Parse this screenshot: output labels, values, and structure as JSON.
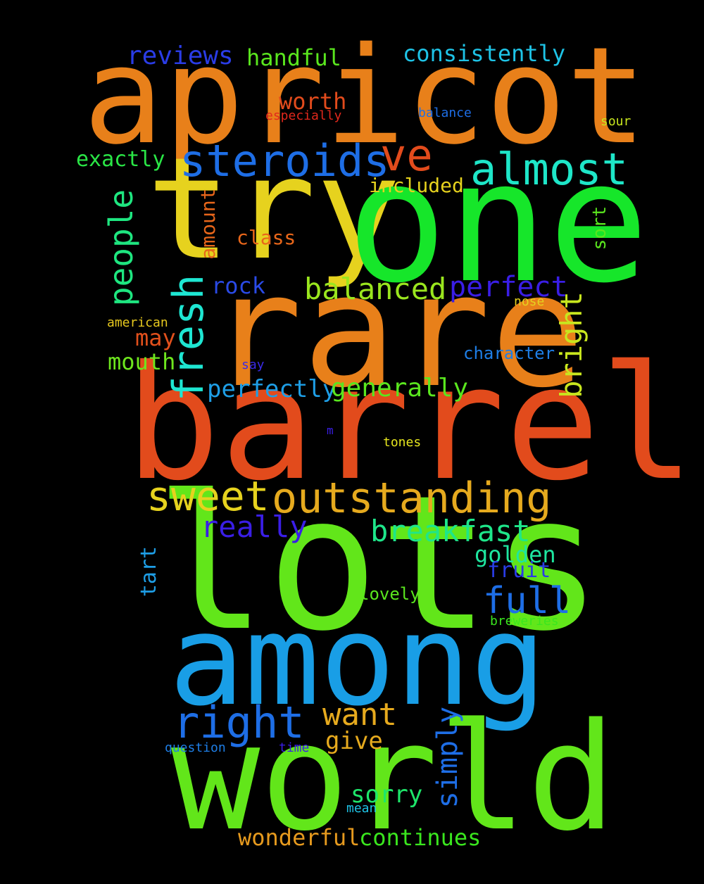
{
  "words": {
    "apricot": {
      "text": "apricot",
      "color": "#e8801a"
    },
    "try": {
      "text": "try",
      "color": "#e6d21e"
    },
    "one": {
      "text": "one",
      "color": "#16e62a"
    },
    "rare": {
      "text": "rare",
      "color": "#e8801a"
    },
    "barrel": {
      "text": "barrel",
      "color": "#e24b1c"
    },
    "lots": {
      "text": "lots",
      "color": "#62e61a"
    },
    "among": {
      "text": "among",
      "color": "#199ee6"
    },
    "world": {
      "text": "world",
      "color": "#62e61a"
    },
    "steroids": {
      "text": "steroids",
      "color": "#1e6ee6"
    },
    "ve": {
      "text": "ve",
      "color": "#e24b1c"
    },
    "almost": {
      "text": "almost",
      "color": "#1ee6c8"
    },
    "reviews": {
      "text": "reviews",
      "color": "#2a3ce6"
    },
    "handful": {
      "text": "handful",
      "color": "#5ae61e"
    },
    "consistently": {
      "text": "consistently",
      "color": "#1ec3e6"
    },
    "worth": {
      "text": "worth",
      "color": "#e24b1c"
    },
    "especially": {
      "text": "especially",
      "color": "#e2281c"
    },
    "balance": {
      "text": "balance",
      "color": "#1e6ee6"
    },
    "sour": {
      "text": "sour",
      "color": "#c8e61e"
    },
    "exactly": {
      "text": "exactly",
      "color": "#2ae646"
    },
    "included": {
      "text": "included",
      "color": "#e6d21e"
    },
    "balanced": {
      "text": "balanced",
      "color": "#9ae61e"
    },
    "perfect": {
      "text": "perfect",
      "color": "#3a1ee6"
    },
    "rock": {
      "text": "rock",
      "color": "#2a4ae6"
    },
    "class": {
      "text": "class",
      "color": "#e8661a"
    },
    "nose": {
      "text": "nose",
      "color": "#e6d21e"
    },
    "american": {
      "text": "american",
      "color": "#e6c81e"
    },
    "may": {
      "text": "may",
      "color": "#e2501c"
    },
    "mouth": {
      "text": "mouth",
      "color": "#6ee61e"
    },
    "character": {
      "text": "character",
      "color": "#1e7ee6"
    },
    "say": {
      "text": "say",
      "color": "#3a2ae6"
    },
    "perfectly": {
      "text": "perfectly",
      "color": "#1e9ee6"
    },
    "generally": {
      "text": "generally",
      "color": "#5ae61e"
    },
    "m": {
      "text": "m",
      "color": "#3a1ee6"
    },
    "tones": {
      "text": "tones",
      "color": "#e6e61e"
    },
    "sweet": {
      "text": "sweet",
      "color": "#e6d21e"
    },
    "outstanding": {
      "text": "outstanding",
      "color": "#e6aa1e"
    },
    "really": {
      "text": "really",
      "color": "#3a1ee6"
    },
    "breakfast": {
      "text": "breakfast",
      "color": "#1ee68a"
    },
    "golden": {
      "text": "golden",
      "color": "#1ee6a0"
    },
    "fruit": {
      "text": "fruit",
      "color": "#2a3ce6"
    },
    "full": {
      "text": "full",
      "color": "#1e6ee6"
    },
    "lovely": {
      "text": "lovely",
      "color": "#5ae61e"
    },
    "breweries": {
      "text": "breweries",
      "color": "#3ae61e"
    },
    "right": {
      "text": "right",
      "color": "#1e6ee6"
    },
    "want": {
      "text": "want",
      "color": "#e6aa1e"
    },
    "give": {
      "text": "give",
      "color": "#e6aa1e"
    },
    "question": {
      "text": "question",
      "color": "#1e7ee6"
    },
    "time": {
      "text": "time",
      "color": "#3a1ee6"
    },
    "sorry": {
      "text": "sorry",
      "color": "#1ee66a"
    },
    "mean": {
      "text": "mean",
      "color": "#1ec3e6"
    },
    "wonderful": {
      "text": "wonderful",
      "color": "#e69a1e"
    },
    "continues": {
      "text": "continues",
      "color": "#3ae61e"
    },
    "fresh": {
      "text": "fresh",
      "color": "#1ee6d2"
    },
    "people": {
      "text": "people",
      "color": "#1ee680"
    },
    "amount": {
      "text": "amount",
      "color": "#e8661a"
    },
    "sort": {
      "text": "sort",
      "color": "#5ae61e"
    },
    "bright": {
      "text": "bright",
      "color": "#c8e61e"
    },
    "tart": {
      "text": "tart",
      "color": "#1e9ee6"
    },
    "simply": {
      "text": "simply",
      "color": "#1e6ee6"
    }
  }
}
